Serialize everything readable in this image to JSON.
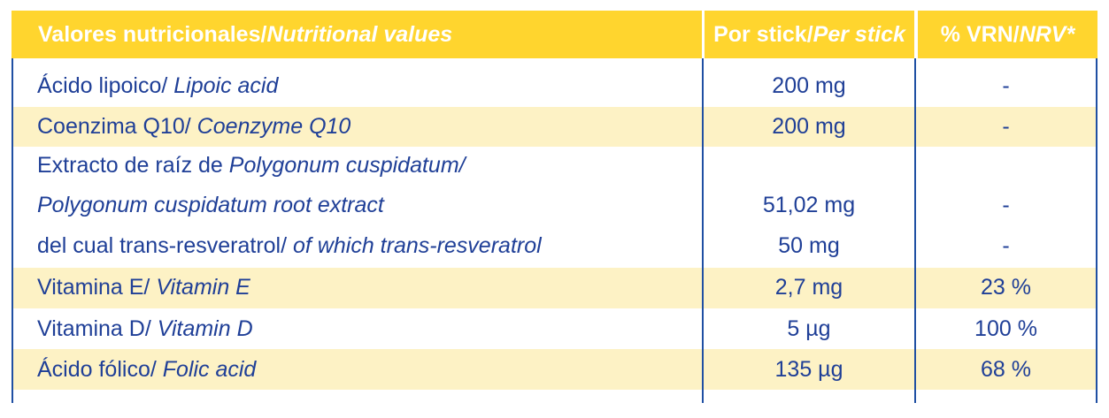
{
  "header": {
    "col1_es": "Valores nutricionales/ ",
    "col1_en": "Nutritional values",
    "col2_es": "Por stick/ ",
    "col2_en": "Per stick",
    "col3_es": "% VRN/ ",
    "col3_en": "NRV*"
  },
  "rows": [
    {
      "es": "Ácido lipoico/ ",
      "en": "Lipoic acid",
      "amount": "200 mg",
      "nrv": "-"
    },
    {
      "es": "Coenzima Q10/ ",
      "en": "Coenzyme Q10",
      "amount": "200 mg",
      "nrv": "-"
    },
    {
      "es": "Extracto de raíz de ",
      "en": "Polygonum cuspidatum/",
      "en2": "Polygonum cuspidatum root extract",
      "amount": "51,02 mg",
      "nrv": "-"
    },
    {
      "es": "del cual trans-resveratrol/ ",
      "en": "of which trans-resveratrol",
      "amount": "50 mg",
      "nrv": "-"
    },
    {
      "es": "Vitamina E/ ",
      "en": "Vitamin E",
      "amount": "2,7 mg",
      "nrv": "23 %"
    },
    {
      "es": "Vitamina D/ ",
      "en": "Vitamin D",
      "amount": "5 µg",
      "nrv": "100 %"
    },
    {
      "es": "Ácido fólico/ ",
      "en": "Folic acid",
      "amount": "135 µg",
      "nrv": "68 %"
    }
  ]
}
